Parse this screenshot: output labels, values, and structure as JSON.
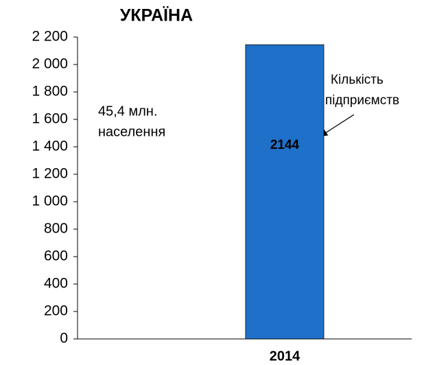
{
  "chart_data": {
    "type": "bar",
    "title": "УКРАЇНА",
    "categories": [
      "2014"
    ],
    "values": [
      2144
    ],
    "color": "#1f70c8",
    "ylim": [
      0,
      2200
    ],
    "yticks": [
      0,
      200,
      400,
      600,
      800,
      {
        "value": 1000,
        "label": "1 000"
      },
      {
        "value": 1200,
        "label": "1 200"
      },
      {
        "value": 1400,
        "label": "1 400"
      },
      {
        "value": 1600,
        "label": "1 600"
      },
      {
        "value": 1800,
        "label": "1 800"
      },
      {
        "value": 2000,
        "label": "2 000"
      },
      {
        "value": 2200,
        "label": "2 200"
      }
    ],
    "annotations": [
      [
        "45,4 млн.",
        "населення"
      ],
      [
        "Кількість",
        "підприємств"
      ]
    ]
  }
}
